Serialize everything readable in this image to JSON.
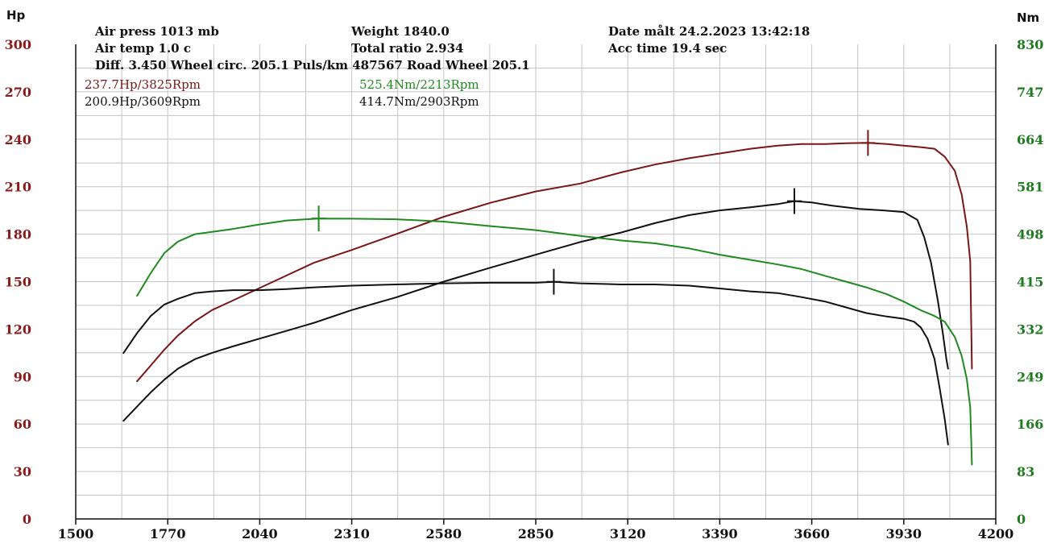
{
  "header": {
    "air_press": "Air press  1013 mb",
    "air_temp": "Air temp   1.0 c",
    "diff_line": "Diff.    3.450  Wheel circ. 205.1  Puls/km  487567  Road Wheel 205.1",
    "weight": "Weight  1840.0",
    "total_ratio": "Total ratio 2.934",
    "date": "Date målt 24.2.2023 13:42:18",
    "acc_time": "Acc time  19.4 sec",
    "peak_hp_modified": "237.7Hp/3825Rpm",
    "peak_hp_stock": "200.9Hp/3609Rpm",
    "peak_nm_modified": "525.4Nm/2213Rpm",
    "peak_nm_stock": "414.7Nm/2903Rpm"
  },
  "colors": {
    "hp_modified": "#7a1616",
    "stock": "#111111",
    "torque_modified": "#1f8a1f",
    "left_axis": "#8b1a1a",
    "right_axis": "#1f7a1f"
  },
  "chart_data": {
    "type": "line",
    "title": "",
    "xlabel": "",
    "left_axis_label": "Hp",
    "right_axis_label": "Nm",
    "xlim": [
      1500,
      4200
    ],
    "ylim_left": [
      0,
      300
    ],
    "ylim_right": [
      0,
      830
    ],
    "x_ticks": [
      "1500",
      "1770",
      "2040",
      "2310",
      "2580",
      "2850",
      "3120",
      "3390",
      "3660",
      "3930",
      "4200"
    ],
    "y_left_ticks": [
      "0",
      "30",
      "60",
      "90",
      "120",
      "150",
      "180",
      "210",
      "240",
      "270",
      "300"
    ],
    "y_right_ticks": [
      "0",
      "83",
      "166",
      "249",
      "332",
      "415",
      "498",
      "581",
      "664",
      "747",
      "830"
    ],
    "grid": true,
    "series": [
      {
        "axis": "left",
        "color": "#7a1616",
        "x": [
          1680,
          1720,
          1760,
          1800,
          1850,
          1900,
          1960,
          2040,
          2120,
          2200,
          2310,
          2440,
          2580,
          2720,
          2850,
          2980,
          3100,
          3200,
          3300,
          3390,
          3480,
          3560,
          3630,
          3700,
          3760,
          3825,
          3880,
          3930,
          3980,
          4020,
          4050,
          4080,
          4100,
          4115,
          4125,
          4130
        ],
        "y": [
          87,
          97,
          107,
          116,
          125,
          132,
          138,
          146,
          154,
          162,
          170,
          180,
          191,
          200,
          207,
          212,
          219,
          224,
          228,
          231,
          234,
          236,
          237,
          237,
          237.5,
          237.7,
          237,
          236,
          235,
          234,
          229,
          220,
          205,
          185,
          163,
          95
        ]
      },
      {
        "axis": "left",
        "color": "#111111",
        "x": [
          1640,
          1680,
          1720,
          1760,
          1800,
          1850,
          1900,
          1960,
          2040,
          2120,
          2200,
          2310,
          2440,
          2580,
          2720,
          2850,
          2980,
          3100,
          3200,
          3300,
          3390,
          3480,
          3560,
          3609,
          3660,
          3720,
          3800,
          3870,
          3930,
          3970,
          3990,
          4010,
          4030,
          4045,
          4055,
          4060
        ],
        "y": [
          62,
          71,
          80,
          88,
          95,
          101,
          105,
          109,
          114,
          119,
          124,
          132,
          140,
          150,
          159,
          167,
          175,
          181,
          187,
          192,
          195,
          197,
          199,
          200.9,
          200,
          198,
          196,
          195,
          194,
          189,
          178,
          162,
          138,
          117,
          101,
          95
        ]
      },
      {
        "axis": "right",
        "color": "#111111",
        "x": [
          1640,
          1680,
          1720,
          1760,
          1800,
          1850,
          1900,
          1960,
          2040,
          2120,
          2200,
          2310,
          2440,
          2580,
          2720,
          2850,
          2903,
          2980,
          3100,
          3200,
          3300,
          3390,
          3480,
          3560,
          3630,
          3700,
          3760,
          3820,
          3880,
          3930,
          3960,
          3980,
          4000,
          4020,
          4035,
          4050,
          4060
        ],
        "y": [
          290,
          325,
          355,
          375,
          385,
          395,
          398,
          400,
          400,
          402,
          405,
          408,
          410,
          412,
          413,
          413,
          414.7,
          412,
          410,
          410,
          408,
          403,
          398,
          395,
          388,
          380,
          370,
          360,
          354,
          350,
          345,
          335,
          315,
          280,
          230,
          175,
          130
        ]
      },
      {
        "axis": "right",
        "color": "#1f8a1f",
        "x": [
          1680,
          1720,
          1760,
          1800,
          1850,
          1900,
          1960,
          2040,
          2120,
          2213,
          2310,
          2440,
          2580,
          2720,
          2850,
          2980,
          3100,
          3200,
          3300,
          3390,
          3480,
          3560,
          3630,
          3700,
          3760,
          3820,
          3880,
          3930,
          3980,
          4020,
          4050,
          4080,
          4100,
          4115,
          4125,
          4130
        ],
        "y": [
          390,
          430,
          465,
          485,
          498,
          502,
          507,
          515,
          522,
          525.4,
          525,
          524,
          520,
          512,
          505,
          495,
          487,
          482,
          473,
          462,
          453,
          445,
          437,
          425,
          415,
          405,
          393,
          380,
          365,
          355,
          345,
          318,
          285,
          245,
          195,
          95
        ]
      }
    ],
    "markers": [
      {
        "axis": "left",
        "color": "#7a1616",
        "x": 3825,
        "y": 237.7
      },
      {
        "axis": "left",
        "color": "#111111",
        "x": 3609,
        "y": 200.9
      },
      {
        "axis": "right",
        "color": "#1f8a1f",
        "x": 2213,
        "y": 525.4
      },
      {
        "axis": "right",
        "color": "#111111",
        "x": 2903,
        "y": 414.7
      }
    ]
  }
}
